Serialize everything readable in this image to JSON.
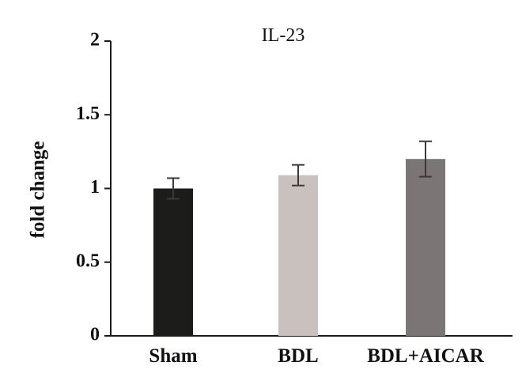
{
  "chart_data": {
    "type": "bar",
    "title": "IL-23",
    "xlabel": "",
    "ylabel": "fold change",
    "ylim": [
      0,
      2
    ],
    "yticks": [
      {
        "value": 0,
        "label": "0"
      },
      {
        "value": 0.5,
        "label": "0.5"
      },
      {
        "value": 1,
        "label": "1"
      },
      {
        "value": 1.5,
        "label": "1.5"
      },
      {
        "value": 2,
        "label": "2"
      }
    ],
    "categories": [
      "Sham",
      "BDL",
      "BDL+AICAR"
    ],
    "values": [
      1.0,
      1.09,
      1.2
    ],
    "error": [
      0.07,
      0.07,
      0.12
    ],
    "colors": [
      "#1c1d1b",
      "#c9c1bd",
      "#7b7575"
    ],
    "grid": false,
    "legend": "none"
  }
}
